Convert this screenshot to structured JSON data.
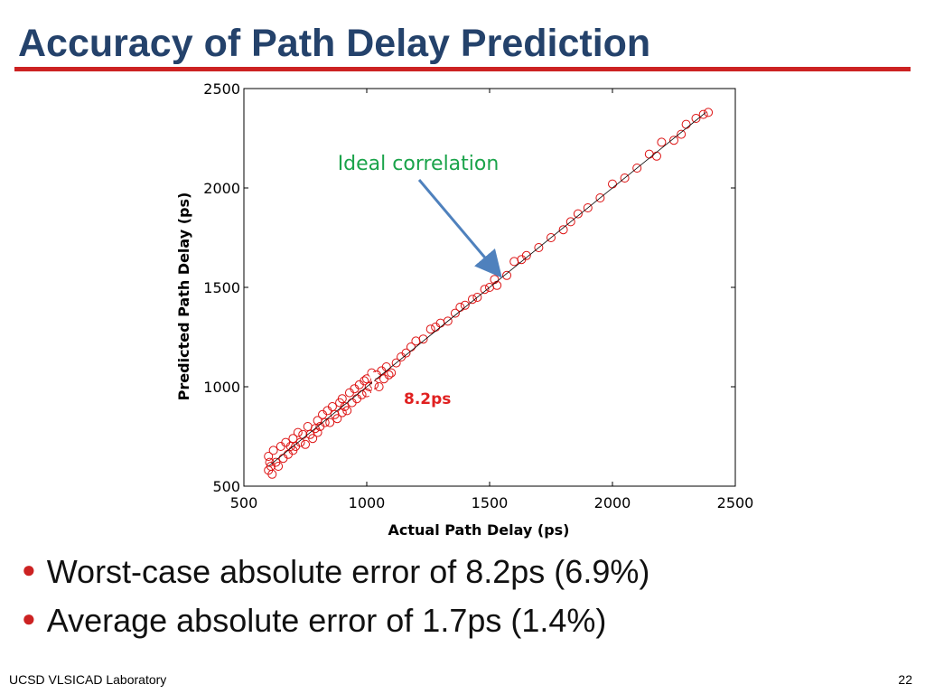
{
  "title": "Accuracy of Path Delay Prediction",
  "bullets": [
    "Worst-case absolute error of 8.2ps (6.9%)",
    "Average absolute error of 1.7ps (1.4%)"
  ],
  "footer": {
    "left": "UCSD VLSICAD Laboratory",
    "page": "22"
  },
  "chart_data": {
    "type": "scatter",
    "xlabel": "Actual Path Delay (ps)",
    "ylabel": "Predicted Path Delay (ps)",
    "xlim": [
      500,
      2500
    ],
    "ylim": [
      500,
      2500
    ],
    "xticks": [
      500,
      1000,
      1500,
      2000,
      2500
    ],
    "yticks": [
      500,
      1000,
      1500,
      2000,
      2500
    ],
    "color": "#dd1111",
    "annotations": [
      "Ideal correlation",
      "8.2ps"
    ],
    "reference_line": {
      "x": [
        600,
        2380
      ],
      "y": [
        600,
        2380
      ]
    },
    "x": [
      600,
      600,
      605,
      610,
      615,
      620,
      630,
      640,
      650,
      660,
      670,
      680,
      690,
      700,
      700,
      710,
      720,
      730,
      740,
      750,
      760,
      770,
      780,
      790,
      800,
      800,
      810,
      820,
      830,
      840,
      850,
      860,
      870,
      880,
      890,
      900,
      900,
      910,
      920,
      930,
      940,
      950,
      960,
      970,
      980,
      990,
      1000,
      1000,
      1010,
      1020,
      1030,
      1040,
      1050,
      1060,
      1070,
      1080,
      1090,
      1100,
      1120,
      1140,
      1160,
      1180,
      1200,
      1230,
      1260,
      1280,
      1300,
      1330,
      1360,
      1380,
      1400,
      1430,
      1450,
      1480,
      1500,
      1520,
      1530,
      1570,
      1600,
      1630,
      1650,
      1700,
      1750,
      1800,
      1830,
      1860,
      1900,
      1950,
      2000,
      2050,
      2100,
      2150,
      2180,
      2200,
      2250,
      2280,
      2300,
      2340,
      2370,
      2390
    ],
    "y": [
      580,
      650,
      620,
      600,
      560,
      680,
      620,
      600,
      700,
      640,
      720,
      660,
      700,
      740,
      680,
      700,
      770,
      720,
      760,
      710,
      800,
      760,
      740,
      790,
      830,
      770,
      800,
      860,
      820,
      880,
      820,
      900,
      860,
      840,
      920,
      940,
      870,
      900,
      880,
      970,
      920,
      990,
      940,
      1010,
      960,
      1030,
      1040,
      970,
      1000,
      1070,
      1010,
      1060,
      1000,
      1080,
      1040,
      1100,
      1060,
      1070,
      1120,
      1150,
      1170,
      1200,
      1230,
      1240,
      1290,
      1300,
      1320,
      1330,
      1370,
      1400,
      1410,
      1440,
      1450,
      1490,
      1500,
      1540,
      1510,
      1560,
      1630,
      1640,
      1660,
      1700,
      1750,
      1790,
      1830,
      1870,
      1900,
      1950,
      2020,
      2050,
      2100,
      2170,
      2160,
      2230,
      2240,
      2270,
      2320,
      2350,
      2370,
      2380
    ]
  }
}
